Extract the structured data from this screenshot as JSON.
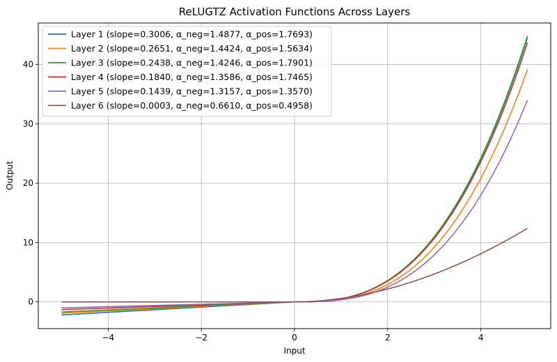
{
  "chart_data": {
    "type": "line",
    "title": "ReLUGTZ Activation Functions Across Layers",
    "xlabel": "Input",
    "ylabel": "Output",
    "xlim": [
      -5.5,
      5.5
    ],
    "ylim": [
      -4.5,
      47
    ],
    "xticks": [
      -4,
      -2,
      0,
      2,
      4
    ],
    "xtick_labels": [
      "−4",
      "−2",
      "0",
      "2",
      "4"
    ],
    "yticks": [
      0,
      10,
      20,
      30,
      40
    ],
    "ytick_labels": [
      "0",
      "10",
      "20",
      "30",
      "40"
    ],
    "grid": true,
    "legend_position": "top-left",
    "x_range": [
      -5,
      5
    ],
    "series": [
      {
        "name": "Layer 1 (slope=0.3006, α_neg=1.4877, α_pos=1.7693)",
        "color": "#1f77b4",
        "y_at_-5": -2.2,
        "y_at_5": 44.5,
        "exponent": 2.75
      },
      {
        "name": "Layer 2 (slope=0.2651, α_neg=1.4424, α_pos=1.5634)",
        "color": "#ff7f0e",
        "y_at_-5": -1.9,
        "y_at_5": 39.2,
        "exponent": 2.83
      },
      {
        "name": "Layer 3 (slope=0.2438, α_neg=1.4246, α_pos=1.7901)",
        "color": "#2ca02c",
        "y_at_-5": -1.7,
        "y_at_5": 44.8,
        "exponent": 2.75
      },
      {
        "name": "Layer 4 (slope=0.1840, α_neg=1.3586, α_pos=1.7465)",
        "color": "#d62728",
        "y_at_-5": -1.3,
        "y_at_5": 43.7,
        "exponent": 2.75
      },
      {
        "name": "Layer 5 (slope=0.1439, α_neg=1.3157, α_pos=1.3570)",
        "color": "#9467bd",
        "y_at_-5": -1.0,
        "y_at_5": 34.0,
        "exponent": 2.85
      },
      {
        "name": "Layer 6 (slope=0.0003, α_neg=0.6610, α_pos=0.4958)",
        "color": "#8c564b",
        "y_at_-5": 0.0,
        "y_at_5": 12.4,
        "exponent": 1.9
      }
    ]
  }
}
